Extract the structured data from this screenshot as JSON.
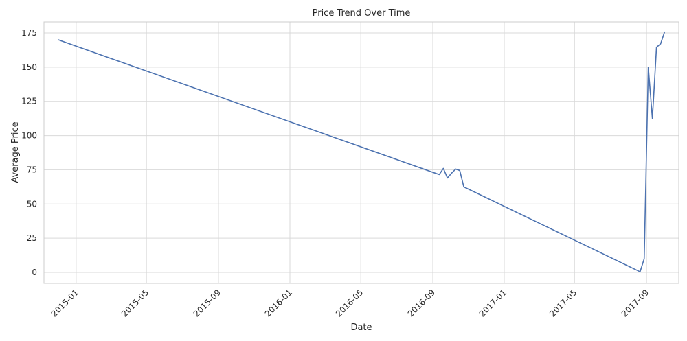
{
  "chart_data": {
    "type": "line",
    "title": "Price Trend Over Time",
    "xlabel": "Date",
    "ylabel": "Average Price",
    "ylim": [
      -8,
      183
    ],
    "xlim": [
      "2014-11-07",
      "2017-10-26"
    ],
    "yticks": [
      0,
      25,
      50,
      75,
      100,
      125,
      150,
      175
    ],
    "xticks": [
      "2015-01",
      "2015-05",
      "2015-09",
      "2016-01",
      "2016-05",
      "2016-09",
      "2017-01",
      "2017-05",
      "2017-09"
    ],
    "grid": true,
    "series": [
      {
        "color": "#4c72b0",
        "points": [
          {
            "x": "2014-12-01",
            "y": 170
          },
          {
            "x": "2016-09-12",
            "y": 71.5
          },
          {
            "x": "2016-09-19",
            "y": 76
          },
          {
            "x": "2016-09-26",
            "y": 69
          },
          {
            "x": "2016-10-03",
            "y": 72.5
          },
          {
            "x": "2016-10-10",
            "y": 75.5
          },
          {
            "x": "2016-10-17",
            "y": 74.5
          },
          {
            "x": "2016-10-24",
            "y": 62.5
          },
          {
            "x": "2017-08-21",
            "y": 0.5
          },
          {
            "x": "2017-08-28",
            "y": 10
          },
          {
            "x": "2017-09-04",
            "y": 150
          },
          {
            "x": "2017-09-11",
            "y": 112.5
          },
          {
            "x": "2017-09-18",
            "y": 164.5
          },
          {
            "x": "2017-09-25",
            "y": 167
          },
          {
            "x": "2017-10-02",
            "y": 176
          }
        ]
      }
    ]
  }
}
